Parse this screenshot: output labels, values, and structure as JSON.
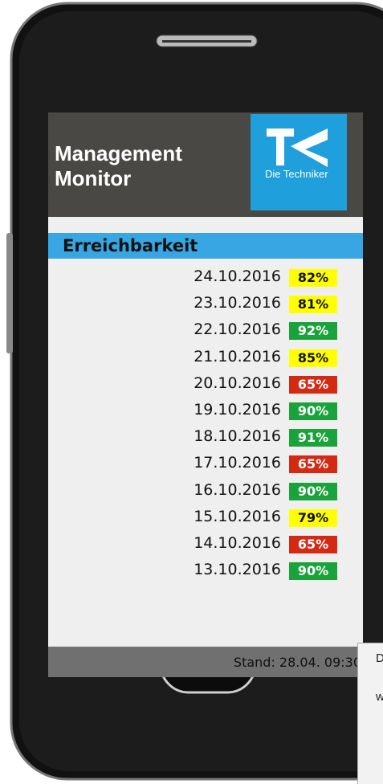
{
  "header": {
    "title": "Management Monitor",
    "logo_text": "Die Techniker"
  },
  "section": {
    "title": "Erreichbarkeit"
  },
  "rows": [
    {
      "date": "24.10.2016",
      "value": "82%",
      "color": "#ffff00"
    },
    {
      "date": "23.10.2016",
      "value": "81%",
      "color": "#ffff00"
    },
    {
      "date": "22.10.2016",
      "value": "92%",
      "color": "#1aa33a"
    },
    {
      "date": "21.10.2016",
      "value": "85%",
      "color": "#ffff00"
    },
    {
      "date": "20.10.2016",
      "value": "65%",
      "color": "#d42a14"
    },
    {
      "date": "19.10.2016",
      "value": "90%",
      "color": "#1aa33a"
    },
    {
      "date": "18.10.2016",
      "value": "91%",
      "color": "#1aa33a"
    },
    {
      "date": "17.10.2016",
      "value": "65%",
      "color": "#d42a14"
    },
    {
      "date": "16.10.2016",
      "value": "90%",
      "color": "#1aa33a"
    },
    {
      "date": "15.10.2016",
      "value": "79%",
      "color": "#ffff00"
    },
    {
      "date": "14.10.2016",
      "value": "65%",
      "color": "#d42a14"
    },
    {
      "date": "13.10.2016",
      "value": "90%",
      "color": "#1aa33a"
    }
  ],
  "footer": {
    "text": "Stand: 28.04. 09:30"
  },
  "overlay": {
    "lines": [
      "D",
      "w"
    ]
  }
}
